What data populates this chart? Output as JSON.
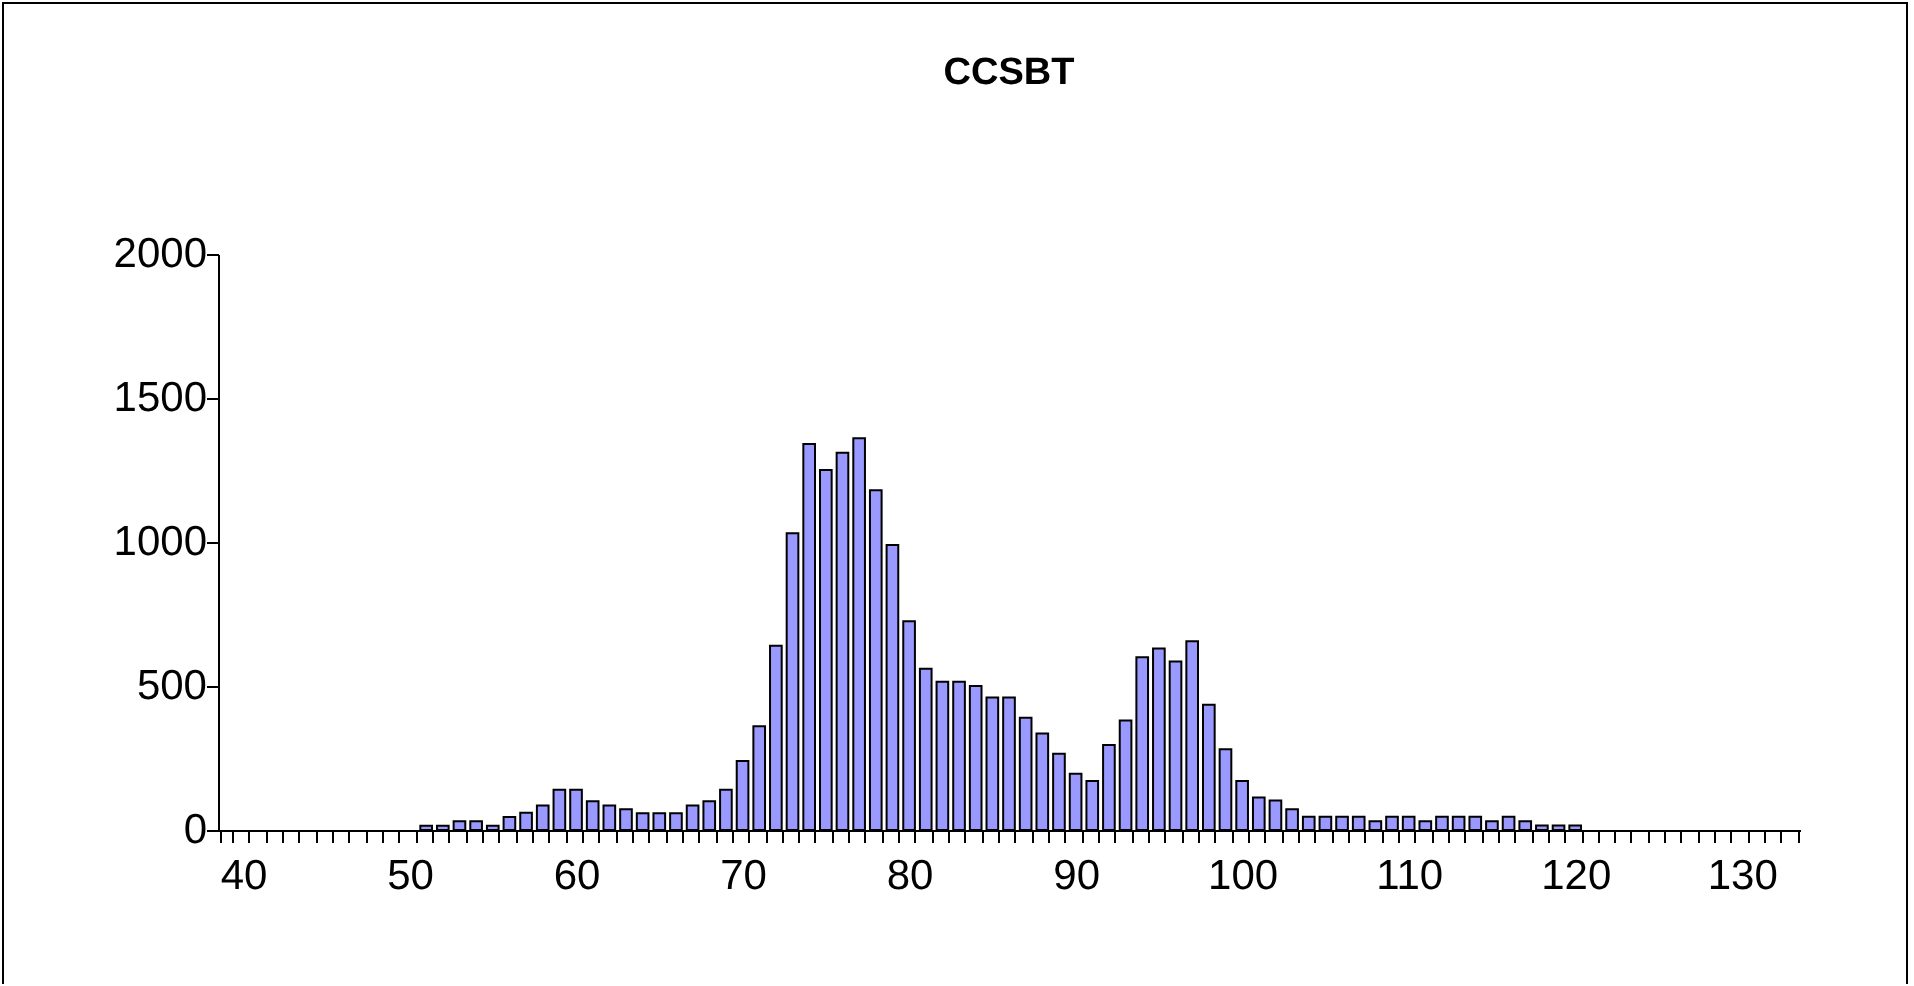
{
  "chart_data": {
    "type": "bar",
    "title": "CCSBT",
    "categories": [
      null,
      "40",
      null,
      null,
      null,
      null,
      null,
      null,
      null,
      null,
      null,
      "50",
      null,
      null,
      null,
      null,
      null,
      null,
      null,
      null,
      null,
      "60",
      null,
      null,
      null,
      null,
      null,
      null,
      null,
      null,
      null,
      "70",
      null,
      null,
      null,
      null,
      null,
      null,
      null,
      null,
      null,
      "80",
      null,
      null,
      null,
      null,
      null,
      null,
      null,
      null,
      null,
      "90",
      null,
      null,
      null,
      null,
      null,
      null,
      null,
      null,
      null,
      "100",
      null,
      null,
      null,
      null,
      null,
      null,
      null,
      null,
      null,
      "110",
      null,
      null,
      null,
      null,
      null,
      null,
      null,
      null,
      null,
      "120",
      null,
      null,
      null,
      null,
      null,
      null,
      null,
      null,
      null,
      "130",
      null,
      null,
      null
    ],
    "values": [
      null,
      null,
      null,
      null,
      null,
      null,
      null,
      null,
      null,
      null,
      null,
      null,
      15,
      15,
      30,
      30,
      15,
      45,
      60,
      85,
      140,
      140,
      100,
      85,
      72,
      58,
      58,
      58,
      85,
      100,
      140,
      240,
      360,
      640,
      1030,
      1340,
      1250,
      1310,
      1360,
      1180,
      990,
      725,
      560,
      515,
      515,
      500,
      460,
      460,
      390,
      335,
      265,
      195,
      170,
      295,
      380,
      600,
      630,
      585,
      655,
      435,
      280,
      170,
      113,
      102,
      72,
      46,
      46,
      46,
      46,
      30,
      46,
      46,
      30,
      46,
      46,
      46,
      30,
      46,
      30,
      16,
      16,
      16,
      null,
      null,
      null,
      null,
      null,
      null,
      null,
      null,
      null,
      null,
      null,
      null,
      null
    ],
    "color": "#9999ff",
    "ylim": [
      0,
      2000
    ],
    "yticks": [
      0,
      500,
      1000,
      1500,
      2000
    ]
  }
}
